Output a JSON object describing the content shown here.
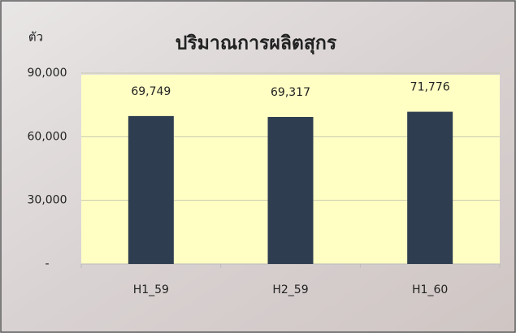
{
  "chart_data": {
    "type": "bar",
    "title": "ปริมาณการผลิตสุกร",
    "ylabel": "ตัว",
    "categories": [
      "H1_59",
      "H2_59",
      "H1_60"
    ],
    "values": [
      69749,
      69317,
      71776
    ],
    "value_labels": [
      "69,749",
      "69,317",
      "71,776"
    ],
    "color": "#2e3e50",
    "ylim": [
      0,
      90000
    ],
    "yticks": [
      {
        "value": 0,
        "label": "-"
      },
      {
        "value": 30000,
        "label": "30,000"
      },
      {
        "value": 60000,
        "label": "60,000"
      },
      {
        "value": 90000,
        "label": "90,000"
      }
    ],
    "grid": true
  }
}
